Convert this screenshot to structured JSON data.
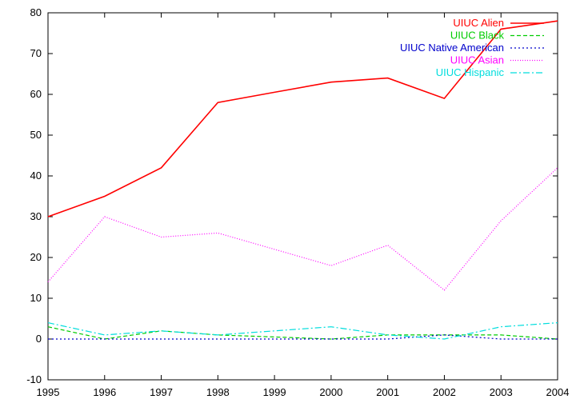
{
  "chart_data": {
    "type": "line",
    "title": "",
    "xlabel": "",
    "ylabel": "",
    "xlim": [
      1995,
      2004
    ],
    "ylim": [
      -10,
      80
    ],
    "x_ticks": [
      "1995",
      "1996",
      "1997",
      "1998",
      "1999",
      "2000",
      "2001",
      "2002",
      "2003",
      "2004"
    ],
    "y_ticks": [
      "-10",
      "0",
      "10",
      "20",
      "30",
      "40",
      "50",
      "60",
      "70",
      "80"
    ],
    "grid": false,
    "legend_position": "top-right",
    "x": [
      1995,
      1996,
      1997,
      1998,
      1999,
      2000,
      2001,
      2002,
      2003,
      2004
    ],
    "series": [
      {
        "name": "UIUC Alien",
        "color": "#ff0000",
        "dash": "solid",
        "values": [
          30,
          35,
          42,
          58,
          60.5,
          63,
          64,
          59,
          76,
          78
        ]
      },
      {
        "name": "UIUC Black",
        "color": "#00cc00",
        "dash": "dashed",
        "values": [
          3,
          0,
          2,
          1,
          0.5,
          0,
          1,
          1,
          1,
          0
        ]
      },
      {
        "name": "UIUC Native American",
        "color": "#0000cc",
        "dash": "dotted",
        "values": [
          0,
          0,
          0,
          0,
          0,
          0,
          0,
          1,
          0,
          0
        ]
      },
      {
        "name": "UIUC Asian",
        "color": "#ff00ff",
        "dash": "finedotted",
        "values": [
          14,
          30,
          25,
          26,
          22,
          18,
          23,
          12,
          29,
          42
        ]
      },
      {
        "name": "UIUC Hispanic",
        "color": "#00dddd",
        "dash": "dashdot",
        "values": [
          4,
          1,
          2,
          1,
          2,
          3,
          1,
          0,
          3,
          4
        ]
      }
    ]
  }
}
